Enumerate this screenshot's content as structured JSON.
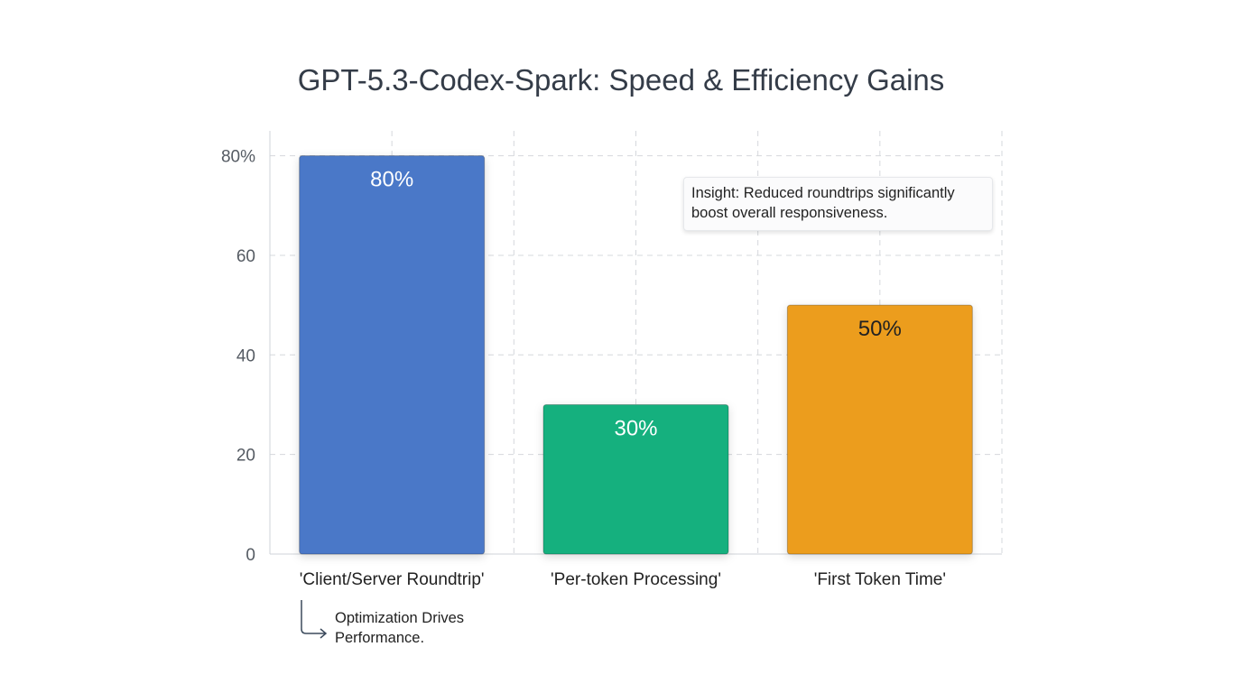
{
  "chart_data": {
    "type": "bar",
    "title": "GPT-5.3-Codex-Spark: Speed & Efficiency Gains",
    "categories": [
      "'Client/Server Roundtrip'",
      "'Per-token Processing'",
      "'First Token Time'"
    ],
    "values": [
      80,
      30,
      50
    ],
    "data_labels": [
      "80%",
      "30%",
      "50%"
    ],
    "colors": [
      "#4a78c8",
      "#15b07e",
      "#ec9d1d"
    ],
    "label_colors": [
      "#ffffff",
      "#ffffff",
      "#222222"
    ],
    "xlabel": "",
    "ylabel": "",
    "ylim": [
      0,
      85
    ],
    "yticks": [
      0,
      20,
      40,
      60,
      80
    ],
    "ytick_labels": [
      "0",
      "20",
      "40",
      "60",
      "80%"
    ],
    "grid": true,
    "annotations": [
      {
        "text": "Insight: Reduced roundtrips significantly boost overall responsiveness.",
        "line1": "Insight: Reduced roundtrips significantly",
        "line2": "boost overall responsiveness."
      },
      {
        "text": "Optimization Drives Performance.",
        "line1": "Optimization Drives",
        "line2": "Performance."
      }
    ]
  }
}
